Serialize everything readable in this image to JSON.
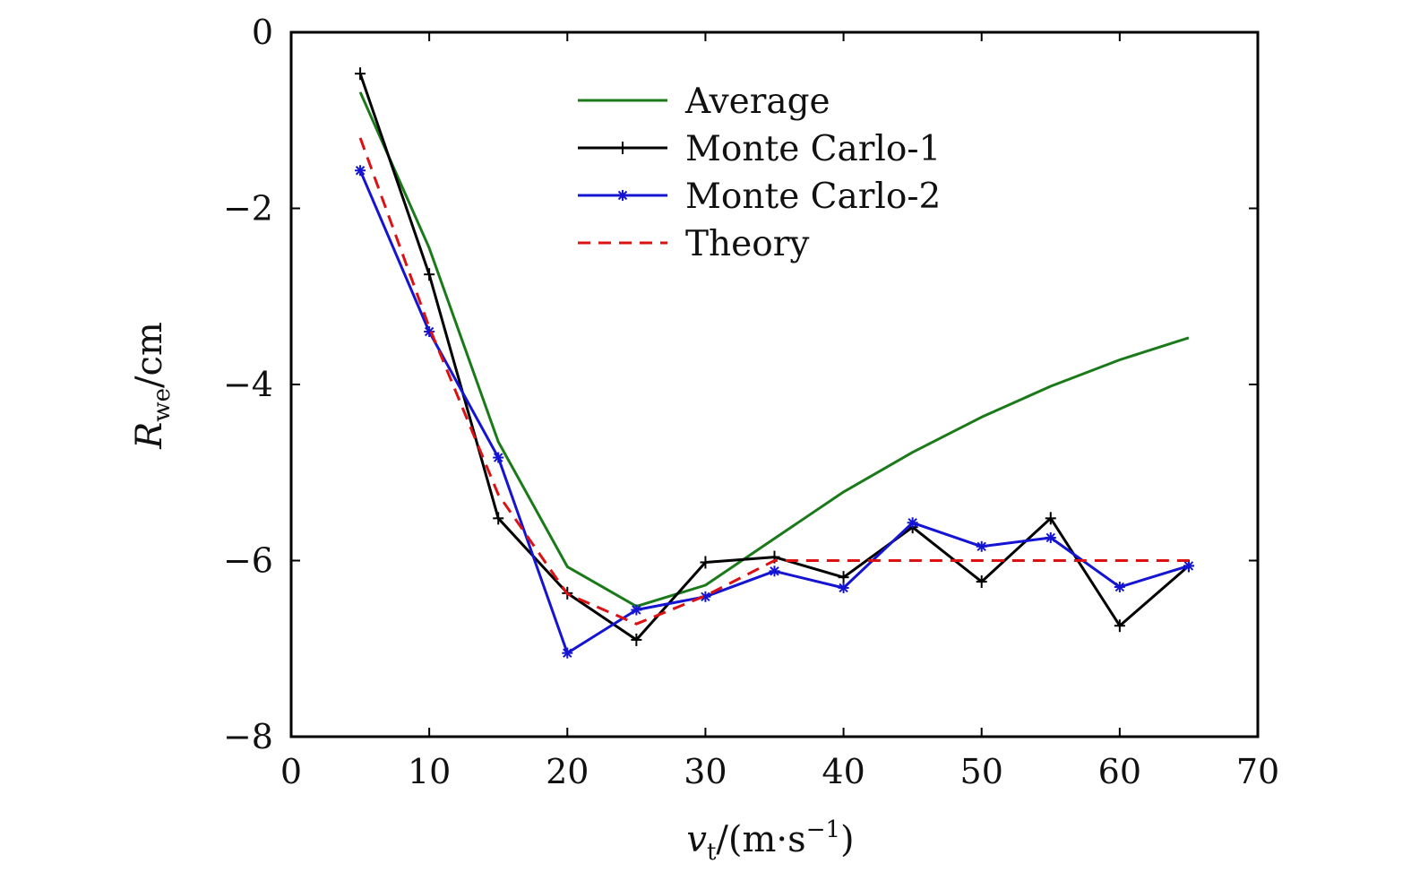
{
  "chart_data": {
    "type": "line",
    "title": "",
    "xlabel": {
      "main": "v",
      "sub": "t",
      "unit_open": "/(m·s",
      "sup": "−1",
      "unit_close": ")"
    },
    "ylabel": {
      "main": "R",
      "sub": "we",
      "unit": "/cm"
    },
    "xlim": [
      0,
      70
    ],
    "ylim": [
      -8,
      0
    ],
    "x_ticks": [
      0,
      10,
      20,
      30,
      40,
      50,
      60,
      70
    ],
    "x_tick_labels": [
      "0",
      "10",
      "20",
      "30",
      "40",
      "50",
      "60",
      "70"
    ],
    "y_ticks": [
      0,
      -2,
      -4,
      -6,
      -8
    ],
    "y_tick_labels": [
      "0",
      "−2",
      "−4",
      "−6",
      "−8"
    ],
    "grid": false,
    "legend_position": "top-center",
    "series": [
      {
        "name": "Average",
        "color": "#1a7a1a",
        "style": "solid",
        "marker": "none",
        "x": [
          5,
          10,
          15,
          20,
          25,
          30,
          35,
          40,
          45,
          50,
          55,
          60,
          65
        ],
        "values": [
          -0.68,
          -2.45,
          -4.65,
          -6.07,
          -6.52,
          -6.28,
          -5.75,
          -5.22,
          -4.77,
          -4.37,
          -4.02,
          -3.72,
          -3.47
        ]
      },
      {
        "name": "Monte Carlo-1",
        "color": "#000000",
        "style": "solid",
        "marker": "plus",
        "x": [
          5,
          10,
          15,
          20,
          25,
          30,
          35,
          40,
          45,
          50,
          55,
          60,
          65
        ],
        "values": [
          -0.47,
          -2.75,
          -5.52,
          -6.37,
          -6.9,
          -6.02,
          -5.96,
          -6.19,
          -5.62,
          -6.24,
          -5.52,
          -6.74,
          -6.06
        ]
      },
      {
        "name": "Monte Carlo-2",
        "color": "#1414d2",
        "style": "solid",
        "marker": "star",
        "x": [
          5,
          10,
          15,
          20,
          25,
          30,
          35,
          40,
          45,
          50,
          55,
          60,
          65
        ],
        "values": [
          -1.57,
          -3.4,
          -4.83,
          -7.05,
          -6.56,
          -6.41,
          -6.12,
          -6.31,
          -5.57,
          -5.84,
          -5.74,
          -6.3,
          -6.06
        ]
      },
      {
        "name": "Theory",
        "color": "#dd1111",
        "style": "dashed",
        "marker": "none",
        "x": [
          5,
          10,
          15,
          20,
          25,
          30,
          35,
          40,
          45,
          50,
          55,
          60,
          65
        ],
        "values": [
          -1.2,
          -3.35,
          -5.25,
          -6.38,
          -6.72,
          -6.4,
          -6.0,
          -6.0,
          -6.0,
          -6.0,
          -6.0,
          -6.0,
          -6.0
        ]
      }
    ]
  }
}
